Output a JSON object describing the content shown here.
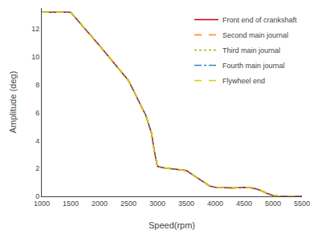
{
  "chart_data": {
    "type": "line",
    "x_label": "Speed(rpm)",
    "y_label": "Amplitude (deg)",
    "x": [
      1000,
      1500,
      2000,
      2500,
      2800,
      2900,
      2950,
      3000,
      3050,
      3100,
      3200,
      3300,
      3500,
      3700,
      3900,
      4000,
      4100,
      4200,
      4300,
      4400,
      4500,
      4600,
      4700,
      4800,
      4900,
      5000,
      5100,
      5500
    ],
    "series": [
      {
        "name": "Front end of crankshaft",
        "color": "#cc0000",
        "line_style": "solid",
        "values": [
          13.2,
          13.2,
          10.8,
          8.3,
          5.8,
          4.5,
          3.2,
          2.15,
          2.1,
          2.05,
          2.0,
          1.95,
          1.85,
          1.3,
          0.75,
          0.65,
          0.62,
          0.6,
          0.6,
          0.62,
          0.65,
          0.62,
          0.55,
          0.4,
          0.2,
          0.06,
          0.01,
          0.0
        ]
      },
      {
        "name": "Second main journal",
        "color": "#ff8800",
        "line_style": "dashed",
        "values": [
          13.2,
          13.2,
          10.8,
          8.3,
          5.8,
          4.5,
          3.2,
          2.15,
          2.1,
          2.05,
          2.0,
          1.95,
          1.85,
          1.3,
          0.75,
          0.65,
          0.62,
          0.6,
          0.6,
          0.62,
          0.65,
          0.62,
          0.55,
          0.4,
          0.2,
          0.06,
          0.01,
          0.0
        ]
      },
      {
        "name": "Third main journal",
        "color": "#99bb00",
        "line_style": "dotted",
        "values": [
          13.2,
          13.2,
          10.8,
          8.3,
          5.8,
          4.5,
          3.2,
          2.15,
          2.1,
          2.05,
          2.0,
          1.95,
          1.85,
          1.3,
          0.75,
          0.65,
          0.62,
          0.6,
          0.6,
          0.62,
          0.65,
          0.62,
          0.55,
          0.4,
          0.2,
          0.06,
          0.01,
          0.0
        ]
      },
      {
        "name": "Fourth main journal",
        "color": "#3388bb",
        "line_style": "dashdot",
        "values": [
          13.2,
          13.2,
          10.8,
          8.3,
          5.8,
          4.5,
          3.2,
          2.15,
          2.1,
          2.05,
          2.0,
          1.95,
          1.85,
          1.3,
          0.75,
          0.65,
          0.62,
          0.6,
          0.6,
          0.62,
          0.65,
          0.62,
          0.55,
          0.4,
          0.2,
          0.06,
          0.01,
          0.0
        ]
      },
      {
        "name": "Flywheel end",
        "color": "#ddcc00",
        "line_style": "dashed",
        "values": [
          13.2,
          13.2,
          10.8,
          8.3,
          5.8,
          4.5,
          3.2,
          2.15,
          2.1,
          2.05,
          2.0,
          1.95,
          1.85,
          1.3,
          0.75,
          0.65,
          0.62,
          0.6,
          0.6,
          0.62,
          0.65,
          0.62,
          0.55,
          0.4,
          0.2,
          0.06,
          0.01,
          0.0
        ]
      }
    ],
    "xlim": [
      1000,
      5500
    ],
    "xticks": [
      1000,
      1500,
      2000,
      2500,
      3000,
      3500,
      4000,
      4500,
      5000,
      5500
    ],
    "ylim": [
      0,
      13.5
    ],
    "yticks": [
      0,
      2,
      4,
      6,
      8,
      10,
      12
    ],
    "grid": false,
    "legend": "upper right"
  }
}
